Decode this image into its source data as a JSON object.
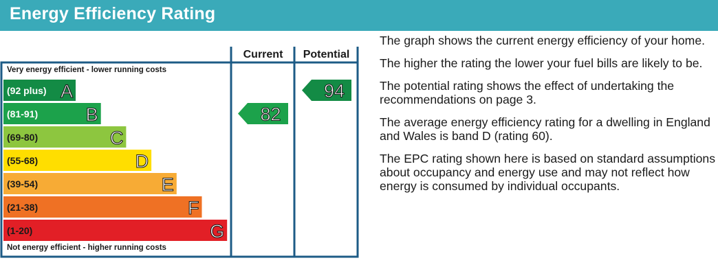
{
  "header": {
    "title": "Energy Efficiency Rating"
  },
  "chart_data": {
    "type": "bar",
    "title": "Energy Efficiency Rating",
    "columns": [
      "Current",
      "Potential"
    ],
    "top_label": "Very energy efficient - lower running costs",
    "bottom_label": "Not energy efficient - higher running costs",
    "bands": [
      {
        "range": "(92 plus)",
        "letter": "A",
        "color": "#138b45"
      },
      {
        "range": "(81-91)",
        "letter": "B",
        "color": "#1ca24b"
      },
      {
        "range": "(69-80)",
        "letter": "C",
        "color": "#8dc63f"
      },
      {
        "range": "(55-68)",
        "letter": "D",
        "color": "#ffde00"
      },
      {
        "range": "(39-54)",
        "letter": "E",
        "color": "#f7ab35"
      },
      {
        "range": "(21-38)",
        "letter": "F",
        "color": "#ef7124"
      },
      {
        "range": "(1-20)",
        "letter": "G",
        "color": "#e21f26"
      }
    ],
    "current": {
      "value": 82,
      "band": "B",
      "color": "#1ca24b"
    },
    "potential": {
      "value": 94,
      "band": "A",
      "color": "#138b45"
    },
    "frame_color": "#1d5b86"
  },
  "text": {
    "paragraphs": [
      "The graph shows the current energy efficiency of your home.",
      "The higher the rating the lower your fuel bills are likely to be.",
      "The potential rating shows the effect of undertaking the recommendations on page 3.",
      "The average energy efficiency rating for a dwelling in England and Wales is band D (rating 60).",
      "The EPC rating shown here is based on standard assumptions about occupancy and energy use and may not reflect how energy is consumed by individual occupants."
    ]
  }
}
